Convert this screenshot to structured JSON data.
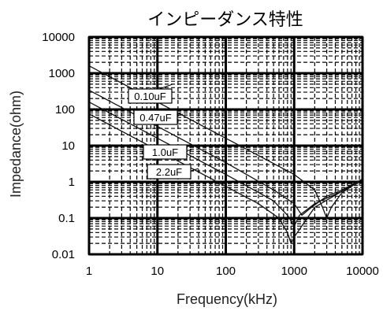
{
  "chart_data": {
    "type": "line",
    "title": "インピーダンス特性",
    "xlabel": "Frequency(kHz)",
    "ylabel": "Impedance(ohm)",
    "x_scale": "log",
    "y_scale": "log",
    "xlim": [
      1,
      10000
    ],
    "ylim": [
      0.01,
      10000
    ],
    "x_ticks": [
      "1",
      "10",
      "100",
      "1000",
      "10000"
    ],
    "y_ticks": [
      "10000",
      "1000",
      "100",
      "10",
      "1",
      "0.1",
      "0.01"
    ],
    "grid": true,
    "series": [
      {
        "name": "0.10uF",
        "x": [
          1,
          10,
          100,
          1000,
          2000,
          2600,
          3000,
          3500,
          5000,
          10000
        ],
        "y": [
          1600,
          160,
          16,
          1.6,
          0.6,
          0.2,
          0.1,
          0.2,
          0.5,
          1.2
        ]
      },
      {
        "name": "0.47uF",
        "x": [
          1,
          10,
          100,
          500,
          1000,
          1300,
          1500,
          1800,
          3000,
          5000,
          10000
        ],
        "y": [
          340,
          34,
          3.4,
          0.6,
          0.25,
          0.12,
          0.15,
          0.2,
          0.4,
          0.6,
          1.2
        ]
      },
      {
        "name": "1.0uF",
        "x": [
          1,
          10,
          100,
          500,
          800,
          1000,
          1200,
          2000,
          5000,
          10000
        ],
        "y": [
          160,
          16,
          1.6,
          0.3,
          0.12,
          0.06,
          0.12,
          0.25,
          0.55,
          1.2
        ]
      },
      {
        "name": "2.2uF",
        "x": [
          1,
          10,
          100,
          300,
          600,
          800,
          900,
          1000,
          2000,
          5000,
          10000
        ],
        "y": [
          75,
          7.5,
          0.75,
          0.25,
          0.1,
          0.04,
          0.02,
          0.03,
          0.2,
          0.55,
          1.2
        ]
      }
    ]
  }
}
